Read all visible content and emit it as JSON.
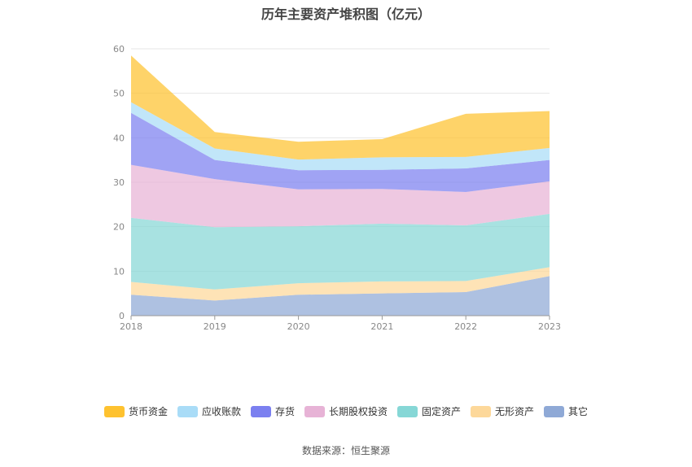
{
  "chart_data": {
    "type": "area",
    "stacked": true,
    "title": "历年主要资产堆积图（亿元）",
    "x": [
      "2018",
      "2019",
      "2020",
      "2021",
      "2022",
      "2023"
    ],
    "ylim": [
      0,
      60
    ],
    "yticks": [
      "0",
      "10",
      "20",
      "30",
      "40",
      "50",
      "60"
    ],
    "grid": true,
    "legend_position": "bottom",
    "series": [
      {
        "name": "其它",
        "color": "#8fa9d6",
        "values": [
          4.7,
          3.4,
          4.7,
          5.0,
          5.3,
          8.9
        ]
      },
      {
        "name": "无形资产",
        "color": "#fdd89a",
        "values": [
          2.9,
          2.5,
          2.6,
          2.7,
          2.5,
          2.0
        ]
      },
      {
        "name": "固定资产",
        "color": "#86d7d6",
        "values": [
          14.4,
          14.0,
          12.8,
          13.0,
          12.5,
          12.0
        ]
      },
      {
        "name": "长期股权投资",
        "color": "#e7b3d6",
        "values": [
          11.9,
          10.8,
          8.3,
          7.8,
          7.5,
          7.3
        ]
      },
      {
        "name": "存货",
        "color": "#7b80f0",
        "values": [
          11.7,
          4.3,
          4.3,
          4.3,
          5.3,
          4.8
        ]
      },
      {
        "name": "应收账款",
        "color": "#a9dcf7",
        "values": [
          2.4,
          2.6,
          2.4,
          2.8,
          2.6,
          2.7
        ]
      },
      {
        "name": "货币资金",
        "color": "#fec22f",
        "values": [
          10.5,
          3.7,
          4.0,
          4.1,
          9.7,
          8.3
        ]
      }
    ],
    "legend_order": [
      "货币资金",
      "应收账款",
      "存货",
      "长期股权投资",
      "固定资产",
      "无形资产",
      "其它"
    ]
  },
  "source": "数据来源：恒生聚源"
}
